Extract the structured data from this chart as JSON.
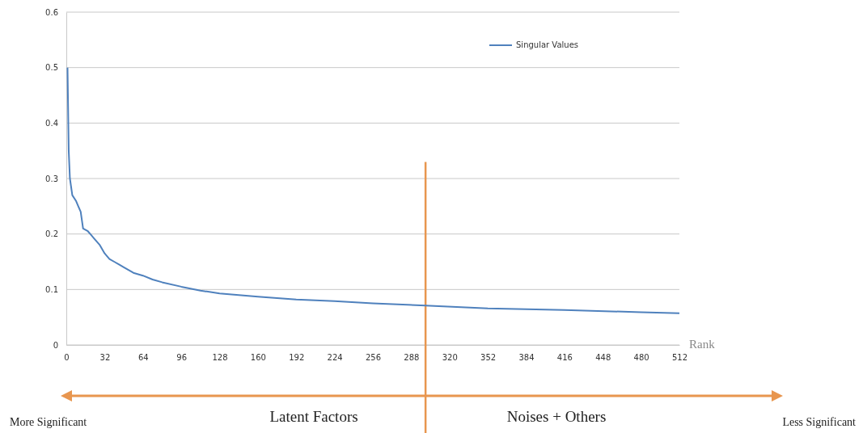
{
  "chart_data": {
    "type": "line",
    "xlabel": "Rank",
    "legend": "top right",
    "grid": "y",
    "marker": "none",
    "line_style": "solid",
    "xlim": [
      0,
      512
    ],
    "xticks": [
      0,
      32,
      64,
      96,
      128,
      160,
      192,
      224,
      256,
      288,
      320,
      352,
      384,
      416,
      448,
      480,
      512
    ],
    "ylim": [
      0,
      0.6
    ],
    "yticks": [
      0,
      0.1,
      0.2,
      0.3,
      0.4,
      0.5,
      0.6
    ],
    "series": [
      {
        "name": "Singular Values",
        "color": "#4f81bd",
        "x": [
          1,
          2,
          3,
          5,
          8,
          10,
          12,
          14,
          18,
          20,
          24,
          28,
          32,
          36,
          40,
          44,
          48,
          56,
          64,
          72,
          80,
          96,
          112,
          128,
          160,
          192,
          224,
          256,
          300,
          352,
          416,
          480,
          512
        ],
        "values": [
          0.5,
          0.35,
          0.3,
          0.27,
          0.26,
          0.25,
          0.24,
          0.21,
          0.205,
          0.2,
          0.19,
          0.18,
          0.165,
          0.155,
          0.15,
          0.145,
          0.14,
          0.13,
          0.125,
          0.118,
          0.113,
          0.105,
          0.098,
          0.093,
          0.087,
          0.082,
          0.079,
          0.075,
          0.071,
          0.066,
          0.063,
          0.059,
          0.057
        ]
      }
    ],
    "ref_lines": [
      {
        "axis": "x",
        "value": 300,
        "color": "#e8964f"
      }
    ],
    "annotations": [
      "More Significant",
      "Latent Factors",
      "Noises + Others",
      "Less Significant"
    ]
  }
}
